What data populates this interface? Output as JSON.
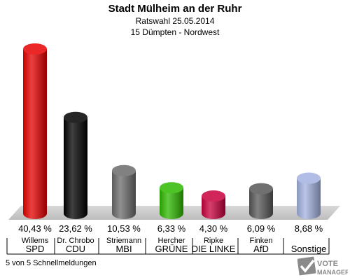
{
  "header": {
    "title": "Stadt Mülheim an der Ruhr",
    "subtitle1": "Ratswahl 25.05.2014",
    "subtitle2": "15 Dümpten - Nordwest"
  },
  "chart_data": {
    "type": "bar",
    "categories": [
      "SPD",
      "CDU",
      "MBI",
      "GRÜNE",
      "DIE LINKE",
      "AfD",
      "Sonstige"
    ],
    "candidates": [
      "Willems",
      "Dr. Chrobo",
      "Striemann",
      "Hercher",
      "Ripke",
      "Finken",
      ""
    ],
    "values": [
      40.43,
      23.62,
      10.53,
      6.33,
      4.3,
      6.09,
      8.68
    ],
    "labels": [
      "40,43 %",
      "23,62 %",
      "10,53 %",
      "6,33 %",
      "4,30 %",
      "6,09 %",
      "8,68 %"
    ],
    "colors": [
      "#e60000",
      "#000000",
      "#6b6b6b",
      "#2eb800",
      "#c8003c",
      "#575757",
      "#a3b1df"
    ],
    "ylim": [
      0,
      40.43
    ]
  },
  "footer": {
    "status": "5 von 5 Schnellmeldungen"
  },
  "logo": {
    "line1": "VOTE",
    "line2": "MANAGER"
  }
}
